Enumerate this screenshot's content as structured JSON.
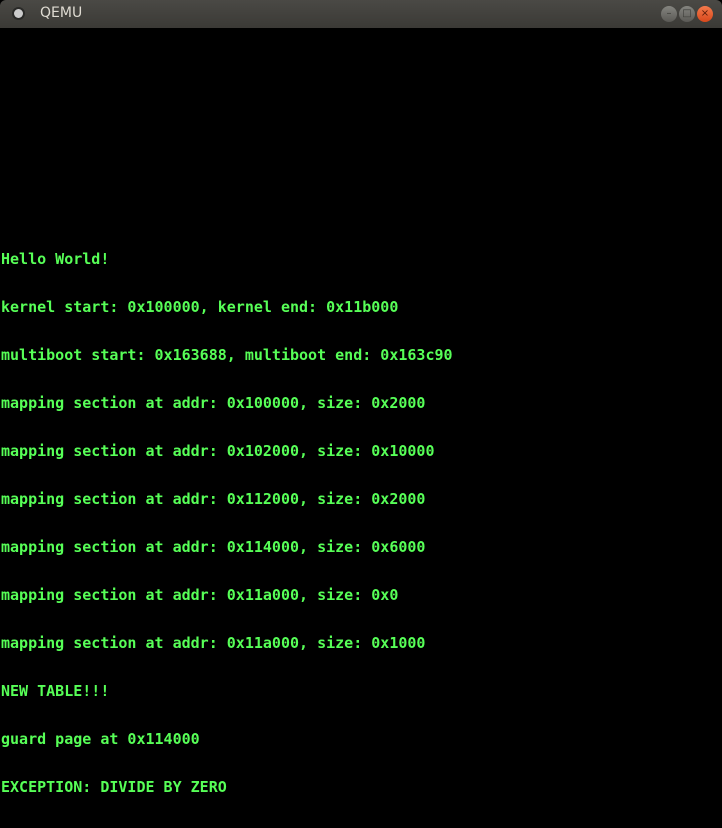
{
  "window": {
    "title": "QEMU",
    "icons": {
      "app": "qemu-app-icon",
      "minimize": "minimize-icon",
      "maximize": "maximize-icon",
      "close": "close-icon"
    }
  },
  "console": {
    "text_color": "#57ff57",
    "background": "#000000",
    "lines": [
      "Hello World!",
      "kernel start: 0x100000, kernel end: 0x11b000",
      "multiboot start: 0x163688, multiboot end: 0x163c90",
      "mapping section at addr: 0x100000, size: 0x2000",
      "mapping section at addr: 0x102000, size: 0x10000",
      "mapping section at addr: 0x112000, size: 0x2000",
      "mapping section at addr: 0x114000, size: 0x6000",
      "mapping section at addr: 0x11a000, size: 0x0",
      "mapping section at addr: 0x11a000, size: 0x1000",
      "NEW TABLE!!!",
      "guard page at 0x114000",
      "EXCEPTION: DIVIDE BY ZERO"
    ]
  }
}
